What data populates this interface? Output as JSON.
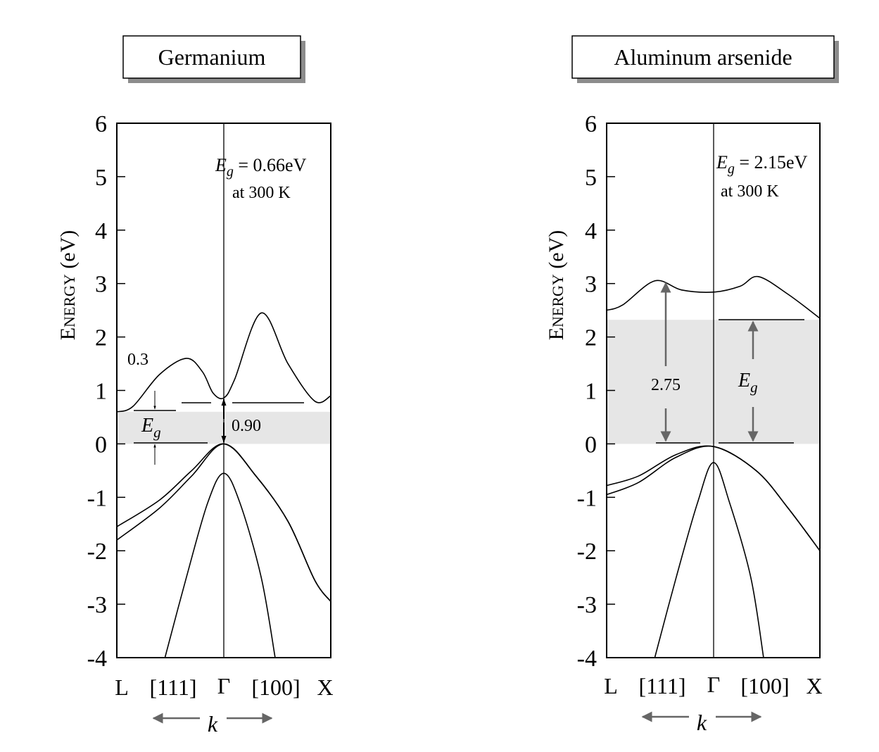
{
  "chart_data": [
    {
      "type": "line",
      "title": "Germanium",
      "ylabel": "Energy (eV)",
      "ylim": [
        -4,
        6
      ],
      "y_ticks": [
        "6",
        "5",
        "4",
        "3",
        "2",
        "1",
        "0",
        "-1",
        "-2",
        "-3",
        "-4"
      ],
      "x_tick_labels": [
        "L",
        "[111]",
        "Γ",
        "[100]",
        "X"
      ],
      "k_label": "k",
      "gap_label": "E_g = 0.66eV",
      "gap_label_sub": "at 300 K",
      "band_gap_eV": 0.66,
      "annotations": [
        "0.3",
        "0.90",
        "Eg"
      ],
      "series": [
        {
          "band": "conduction",
          "points": [
            [
              -1,
              0.6
            ],
            [
              -0.85,
              0.7
            ],
            [
              -0.6,
              1.3
            ],
            [
              -0.35,
              1.6
            ],
            [
              -0.2,
              1.35
            ],
            [
              -0.1,
              0.95
            ],
            [
              0,
              0.86
            ],
            [
              0.1,
              1.2
            ],
            [
              0.35,
              2.45
            ],
            [
              0.6,
              1.5
            ],
            [
              0.85,
              0.8
            ],
            [
              1,
              0.9
            ]
          ]
        },
        {
          "band": "heavy-hole",
          "points": [
            [
              -1,
              -1.55
            ],
            [
              -0.6,
              -1.05
            ],
            [
              -0.3,
              -0.5
            ],
            [
              0,
              0
            ],
            [
              0.3,
              -0.6
            ],
            [
              0.6,
              -1.45
            ],
            [
              0.85,
              -2.55
            ],
            [
              1,
              -2.95
            ]
          ]
        },
        {
          "band": "light-hole",
          "points": [
            [
              -1,
              -1.8
            ],
            [
              -0.6,
              -1.2
            ],
            [
              -0.3,
              -0.6
            ],
            [
              0,
              0
            ],
            [
              0.3,
              -0.6
            ],
            [
              0.6,
              -1.45
            ],
            [
              0.85,
              -2.55
            ],
            [
              1,
              -2.95
            ]
          ]
        },
        {
          "band": "split-off",
          "points": [
            [
              -0.55,
              -4
            ],
            [
              -0.35,
              -2.5
            ],
            [
              -0.15,
              -1.1
            ],
            [
              0,
              -0.55
            ],
            [
              0.15,
              -1.1
            ],
            [
              0.35,
              -2.5
            ],
            [
              0.48,
              -4
            ]
          ]
        }
      ]
    },
    {
      "type": "line",
      "title": "Aluminum arsenide",
      "ylabel": "Energy (eV)",
      "ylim": [
        -4,
        6
      ],
      "y_ticks": [
        "6",
        "5",
        "4",
        "3",
        "2",
        "1",
        "0",
        "-1",
        "-2",
        "-3",
        "-4"
      ],
      "x_tick_labels": [
        "L",
        "[111]",
        "Γ",
        "[100]",
        "X"
      ],
      "k_label": "k",
      "gap_label": "E_g = 2.15eV",
      "gap_label_sub": "at 300 K",
      "band_gap_eV": 2.15,
      "annotations": [
        "2.75",
        "Eg"
      ],
      "series": [
        {
          "band": "conduction",
          "points": [
            [
              -1,
              2.5
            ],
            [
              -0.85,
              2.6
            ],
            [
              -0.55,
              3.05
            ],
            [
              -0.3,
              2.88
            ],
            [
              0,
              2.84
            ],
            [
              0.25,
              2.95
            ],
            [
              0.42,
              3.13
            ],
            [
              0.7,
              2.8
            ],
            [
              1,
              2.35
            ]
          ]
        },
        {
          "band": "heavy-hole",
          "points": [
            [
              -1,
              -0.78
            ],
            [
              -0.7,
              -0.6
            ],
            [
              -0.35,
              -0.2
            ],
            [
              0,
              -0.05
            ],
            [
              0.4,
              -0.5
            ],
            [
              0.7,
              -1.2
            ],
            [
              1,
              -2.0
            ]
          ]
        },
        {
          "band": "light-hole",
          "points": [
            [
              -1,
              -0.95
            ],
            [
              -0.7,
              -0.72
            ],
            [
              -0.35,
              -0.25
            ],
            [
              0,
              -0.05
            ],
            [
              0.4,
              -0.5
            ],
            [
              0.7,
              -1.2
            ],
            [
              1,
              -2.0
            ]
          ]
        },
        {
          "band": "split-off",
          "points": [
            [
              -0.55,
              -4
            ],
            [
              -0.35,
              -2.5
            ],
            [
              -0.15,
              -1.1
            ],
            [
              0,
              -0.35
            ],
            [
              0.15,
              -1.1
            ],
            [
              0.35,
              -2.5
            ],
            [
              0.47,
              -4
            ]
          ]
        }
      ]
    }
  ],
  "colors": {
    "gap_shade": "#e6e6e6",
    "arrow_gray": "#666666",
    "title_shadow": "#8c8c8c",
    "line": "#000000"
  }
}
